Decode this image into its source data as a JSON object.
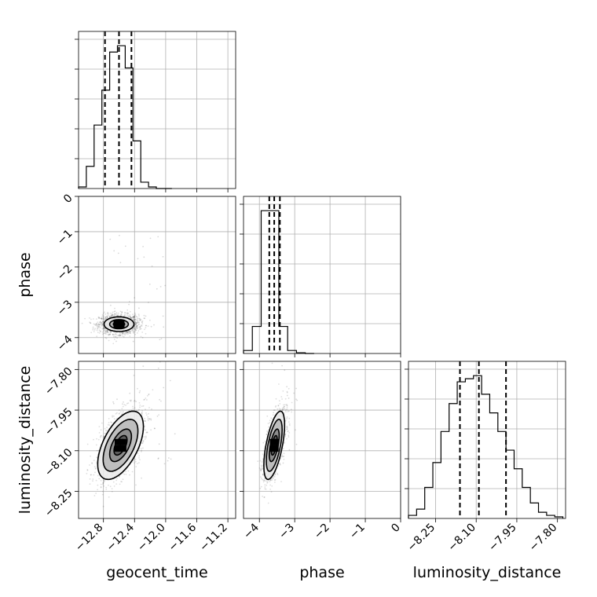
{
  "chart_data": {
    "type": "corner",
    "parameters": [
      "geocent_time",
      "phase",
      "luminosity_distance"
    ],
    "axis_labels": {
      "geocent_time": "geocent_time",
      "phase": "phase",
      "luminosity_distance": "luminosity_distance"
    },
    "ranges": {
      "geocent_time": [
        -13.12,
        -11.1
      ],
      "phase": [
        -4.45,
        0.0
      ],
      "luminosity_distance": [
        -8.35,
        -7.77
      ]
    },
    "ticks": {
      "geocent_time": [
        "-12.8",
        "-12.4",
        "-12.0",
        "-11.6",
        "-11.2"
      ],
      "phase": [
        "-4",
        "-3",
        "-2",
        "-1",
        "0"
      ],
      "luminosity_distance": [
        "-8.25",
        "-8.10",
        "-7.95",
        "-7.80"
      ]
    },
    "quantiles": {
      "geocent_time": [
        -12.78,
        -12.6,
        -12.44
      ],
      "phase": [
        -3.72,
        -3.58,
        -3.42
      ],
      "luminosity_distance": [
        -8.16,
        -8.09,
        -7.99
      ]
    },
    "histograms": {
      "geocent_time": {
        "edges": [
          -13.12,
          -13.02,
          -12.92,
          -12.82,
          -12.72,
          -12.62,
          -12.52,
          -12.42,
          -12.32,
          -12.22,
          -12.12,
          -12.02,
          -11.92
        ],
        "counts": [
          1,
          14,
          40,
          62,
          86,
          90,
          76,
          30,
          4,
          1,
          0,
          0
        ]
      },
      "phase": {
        "edges": [
          -4.45,
          -4.2,
          -3.95,
          -3.7,
          -3.45,
          -3.2,
          -2.95,
          -2.7,
          -2.45
        ],
        "counts": [
          2,
          18,
          95,
          95,
          18,
          2,
          0.5,
          0
        ]
      },
      "luminosity_distance": {
        "edges": [
          -8.35,
          -8.32,
          -8.29,
          -8.26,
          -8.23,
          -8.2,
          -8.17,
          -8.14,
          -8.11,
          -8.08,
          -8.05,
          -8.02,
          -7.99,
          -7.96,
          -7.93,
          -7.9,
          -7.87,
          -7.84,
          -7.81,
          -7.78
        ],
        "counts": [
          1,
          3,
          10,
          18,
          28,
          37,
          44,
          45,
          46,
          40,
          34,
          28,
          22,
          16,
          10,
          5,
          2,
          1,
          0.5
        ]
      }
    },
    "contours_2d": [
      {
        "x": "geocent_time",
        "y": "phase",
        "center": [
          -12.6,
          -3.62
        ],
        "sigma": [
          0.12,
          0.13
        ],
        "corr": 0.0,
        "levels": [
          0.6,
          1.0,
          1.6
        ]
      },
      {
        "x": "geocent_time",
        "y": "luminosity_distance",
        "center": [
          -12.58,
          -8.08
        ],
        "sigma": [
          0.14,
          0.06
        ],
        "corr": 0.55,
        "levels": [
          0.6,
          1.0,
          1.6,
          2.1
        ]
      },
      {
        "x": "phase",
        "y": "luminosity_distance",
        "center": [
          -3.58,
          -8.08
        ],
        "sigma": [
          0.14,
          0.06
        ],
        "corr": 0.6,
        "levels": [
          0.6,
          1.0,
          1.6,
          2.1
        ]
      }
    ],
    "grid": true,
    "colors": {
      "density": "#000000",
      "contour": "#000000",
      "gridline": "#b0b0b0"
    }
  }
}
